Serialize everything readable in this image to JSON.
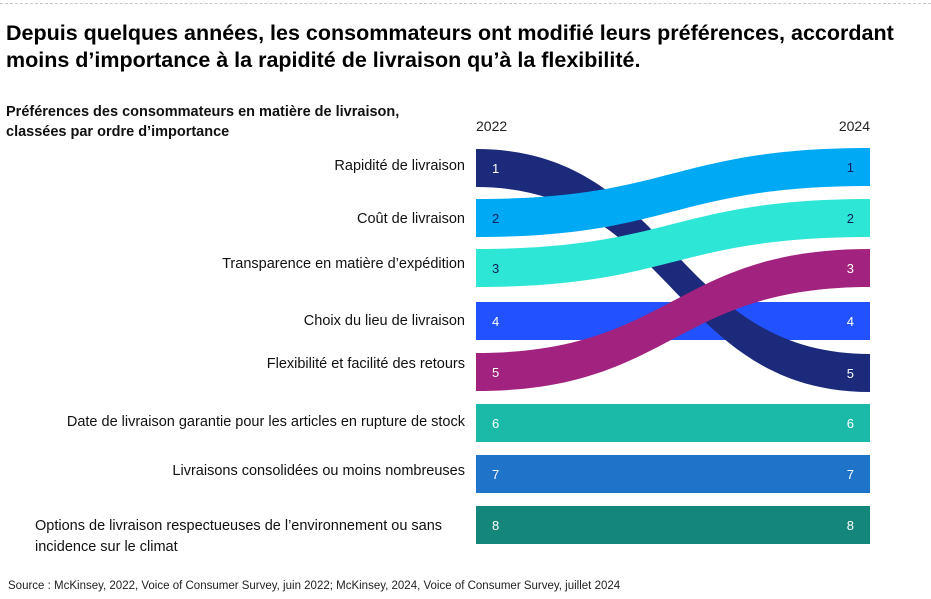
{
  "headline": "Depuis quelques années, les consommateurs ont modifié leurs préférences, accordant moins d’importance à la rapidité de livraison qu’à la flexibilité.",
  "subtitle": "Préférences des consommateurs en matière de livraison, classées par ordre d’importance",
  "source": "Source : McKinsey, 2022, Voice of Consumer Survey, juin 2022; McKinsey, 2024, Voice of Consumer Survey, juillet 2024",
  "chart_data": {
    "type": "bump",
    "x": [
      "2022",
      "2024"
    ],
    "series": [
      {
        "name": "Rapidité de livraison",
        "values": [
          1,
          5
        ],
        "color": "#1b2a7a"
      },
      {
        "name": "Coût de livraison",
        "values": [
          2,
          1
        ],
        "color": "#00a9f4"
      },
      {
        "name": "Transparence en matière d’expédition",
        "values": [
          3,
          2
        ],
        "color": "#2ee6d6"
      },
      {
        "name": "Choix du lieu de livraison",
        "values": [
          4,
          4
        ],
        "color": "#2251ff"
      },
      {
        "name": "Flexibilité et facilité des retours",
        "values": [
          5,
          3
        ],
        "color": "#a2227f"
      },
      {
        "name": "Date de livraison garantie pour les articles en rupture de stock",
        "values": [
          6,
          6
        ],
        "color": "#1bb9a7"
      },
      {
        "name": "Livraisons consolidées ou moins nombreuses",
        "values": [
          7,
          7
        ],
        "color": "#1f73c9"
      },
      {
        "name": "Options de livraison respectueuses de l’environnement ou sans incidence sur le climat",
        "values": [
          8,
          8
        ],
        "color": "#14877a"
      }
    ],
    "rank_labels_2022": [
      "1",
      "2",
      "3",
      "4",
      "5",
      "6",
      "7",
      "8"
    ],
    "rank_labels_2024": [
      "1",
      "2",
      "3",
      "4",
      "5",
      "6",
      "7",
      "8"
    ]
  }
}
